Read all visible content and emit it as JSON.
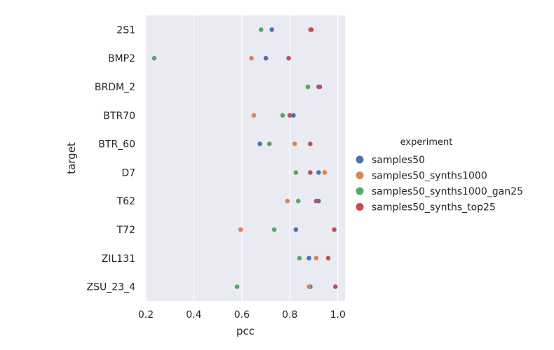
{
  "chart_data": {
    "type": "scatter",
    "xlabel": "pcc",
    "ylabel": "target",
    "xlim": [
      0.2,
      1.03
    ],
    "xticks": [
      0.2,
      0.4,
      0.6,
      0.8,
      1.0
    ],
    "xtick_labels": [
      "0.2",
      "0.4",
      "0.6",
      "0.8",
      "1.0"
    ],
    "grid": true,
    "legend": {
      "title": "experiment",
      "placement": "right"
    },
    "categories": [
      "2S1",
      "BMP2",
      "BRDM_2",
      "BTR70",
      "BTR_60",
      "D7",
      "T62",
      "T72",
      "ZIL131",
      "ZSU_23_4"
    ],
    "series": [
      {
        "name": "samples50",
        "color": "#4c72b0",
        "values": [
          0.725,
          0.7,
          0.92,
          0.815,
          0.675,
          0.92,
          0.92,
          0.825,
          0.88,
          0.885
        ]
      },
      {
        "name": "samples50_synths1000",
        "color": "#dd8452",
        "values": [
          0.885,
          0.64,
          0.875,
          0.65,
          0.82,
          0.945,
          0.79,
          0.595,
          0.91,
          0.88
        ]
      },
      {
        "name": "samples50_synths1000_gan25",
        "color": "#55a868",
        "values": [
          0.68,
          0.235,
          0.875,
          0.77,
          0.715,
          0.825,
          0.835,
          0.735,
          0.84,
          0.58
        ]
      },
      {
        "name": "samples50_synths_top25",
        "color": "#c44e52",
        "values": [
          0.89,
          0.795,
          0.925,
          0.8,
          0.885,
          0.885,
          0.91,
          0.985,
          0.96,
          0.99
        ]
      }
    ]
  }
}
